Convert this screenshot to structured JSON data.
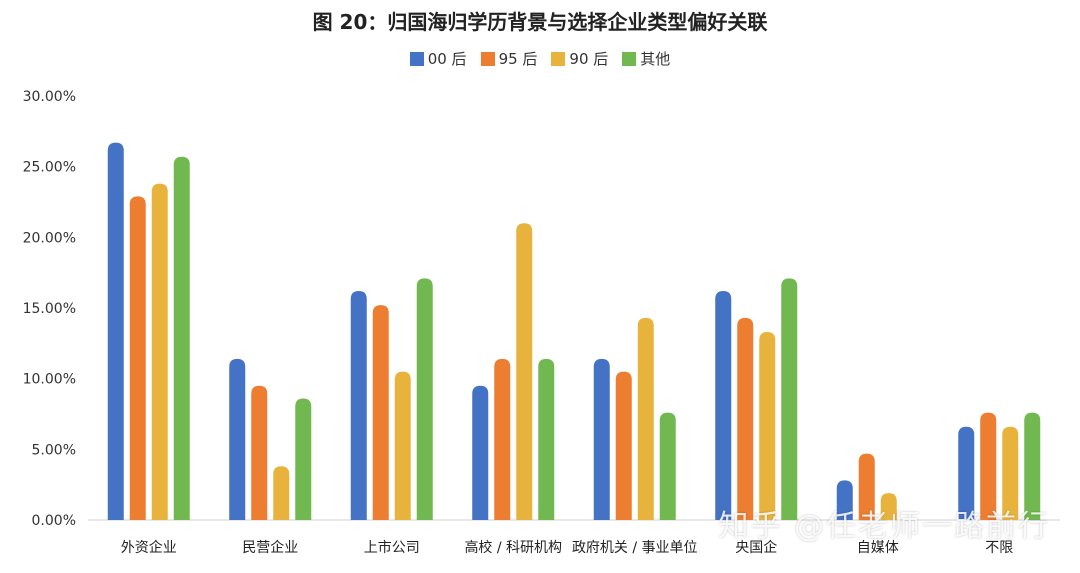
{
  "title": "图 20：归国海归学历背景与选择企业类型偏好关联",
  "watermark": "知乎 @任老师一路前行",
  "colors": {
    "series0": "#4472c4",
    "series1": "#ed7d31",
    "series2": "#e8b33c",
    "series3": "#70b84f"
  },
  "chart_data": {
    "type": "bar",
    "title": "图 20：归国海归学历背景与选择企业类型偏好关联",
    "categories": [
      "外资企业",
      "民营企业",
      "上市公司",
      "高校 / 科研机构",
      "政府机关 / 事业单位",
      "央国企",
      "自媒体",
      "不限"
    ],
    "series": [
      {
        "name": "00 后",
        "color": "#4472c4",
        "values": [
          26.7,
          11.4,
          16.2,
          9.5,
          11.4,
          16.2,
          2.8,
          6.6
        ]
      },
      {
        "name": "95 后",
        "color": "#ed7d31",
        "values": [
          22.9,
          9.5,
          15.2,
          11.4,
          10.5,
          14.3,
          4.7,
          7.6
        ]
      },
      {
        "name": "90 后",
        "color": "#e8b33c",
        "values": [
          23.8,
          3.8,
          10.5,
          21.0,
          14.3,
          13.3,
          1.9,
          6.6
        ]
      },
      {
        "name": "其他",
        "color": "#70b84f",
        "values": [
          25.7,
          8.6,
          17.1,
          11.4,
          7.6,
          17.1,
          0.0,
          7.6
        ]
      }
    ],
    "yticks": [
      "0.00%",
      "5.00%",
      "10.00%",
      "15.00%",
      "20.00%",
      "25.00%",
      "30.00%"
    ],
    "ylim": [
      0,
      30
    ],
    "legend": "top-center",
    "grid": false
  }
}
